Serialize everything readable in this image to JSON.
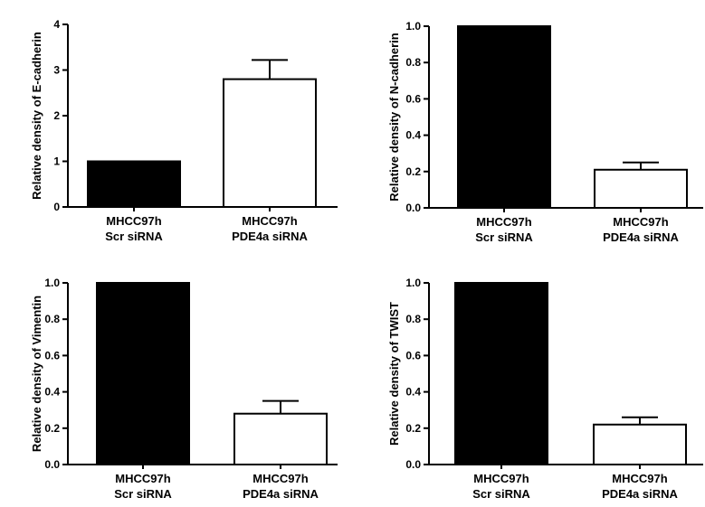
{
  "chart_data": [
    {
      "type": "bar",
      "ylabel": "Relative density of E-cadherin",
      "ylim": [
        0,
        4
      ],
      "yticks": [
        "0",
        "1",
        "2",
        "3",
        "4"
      ],
      "categories": [
        [
          "MHCC97h",
          "Scr siRNA"
        ],
        [
          "MHCC97h",
          "PDE4a siRNA"
        ]
      ],
      "values": [
        1.0,
        2.8
      ],
      "errors": [
        0.0,
        0.42
      ],
      "bar_colors": [
        "#000000",
        "#ffffff"
      ]
    },
    {
      "type": "bar",
      "ylabel": "Relative density of N-cadherin",
      "ylim": [
        0,
        1.0
      ],
      "yticks": [
        "0.0",
        "0.2",
        "0.4",
        "0.6",
        "0.8",
        "1.0"
      ],
      "categories": [
        [
          "MHCC97h",
          "Scr siRNA"
        ],
        [
          "MHCC97h",
          "PDE4a siRNA"
        ]
      ],
      "values": [
        1.0,
        0.21
      ],
      "errors": [
        0.0,
        0.04
      ],
      "bar_colors": [
        "#000000",
        "#ffffff"
      ]
    },
    {
      "type": "bar",
      "ylabel": "Relative density of Vimentin",
      "ylim": [
        0,
        1.0
      ],
      "yticks": [
        "0.0",
        "0.2",
        "0.4",
        "0.6",
        "0.8",
        "1.0"
      ],
      "categories": [
        [
          "MHCC97h",
          "Scr siRNA"
        ],
        [
          "MHCC97h",
          "PDE4a siRNA"
        ]
      ],
      "values": [
        1.0,
        0.28
      ],
      "errors": [
        0.0,
        0.07
      ],
      "bar_colors": [
        "#000000",
        "#ffffff"
      ]
    },
    {
      "type": "bar",
      "ylabel": "Relative density of TWIST",
      "ylim": [
        0,
        1.0
      ],
      "yticks": [
        "0.0",
        "0.2",
        "0.4",
        "0.6",
        "0.8",
        "1.0"
      ],
      "categories": [
        [
          "MHCC97h",
          "Scr siRNA"
        ],
        [
          "MHCC97h",
          "PDE4a siRNA"
        ]
      ],
      "values": [
        1.0,
        0.22
      ],
      "errors": [
        0.0,
        0.04
      ],
      "bar_colors": [
        "#000000",
        "#ffffff"
      ]
    }
  ]
}
